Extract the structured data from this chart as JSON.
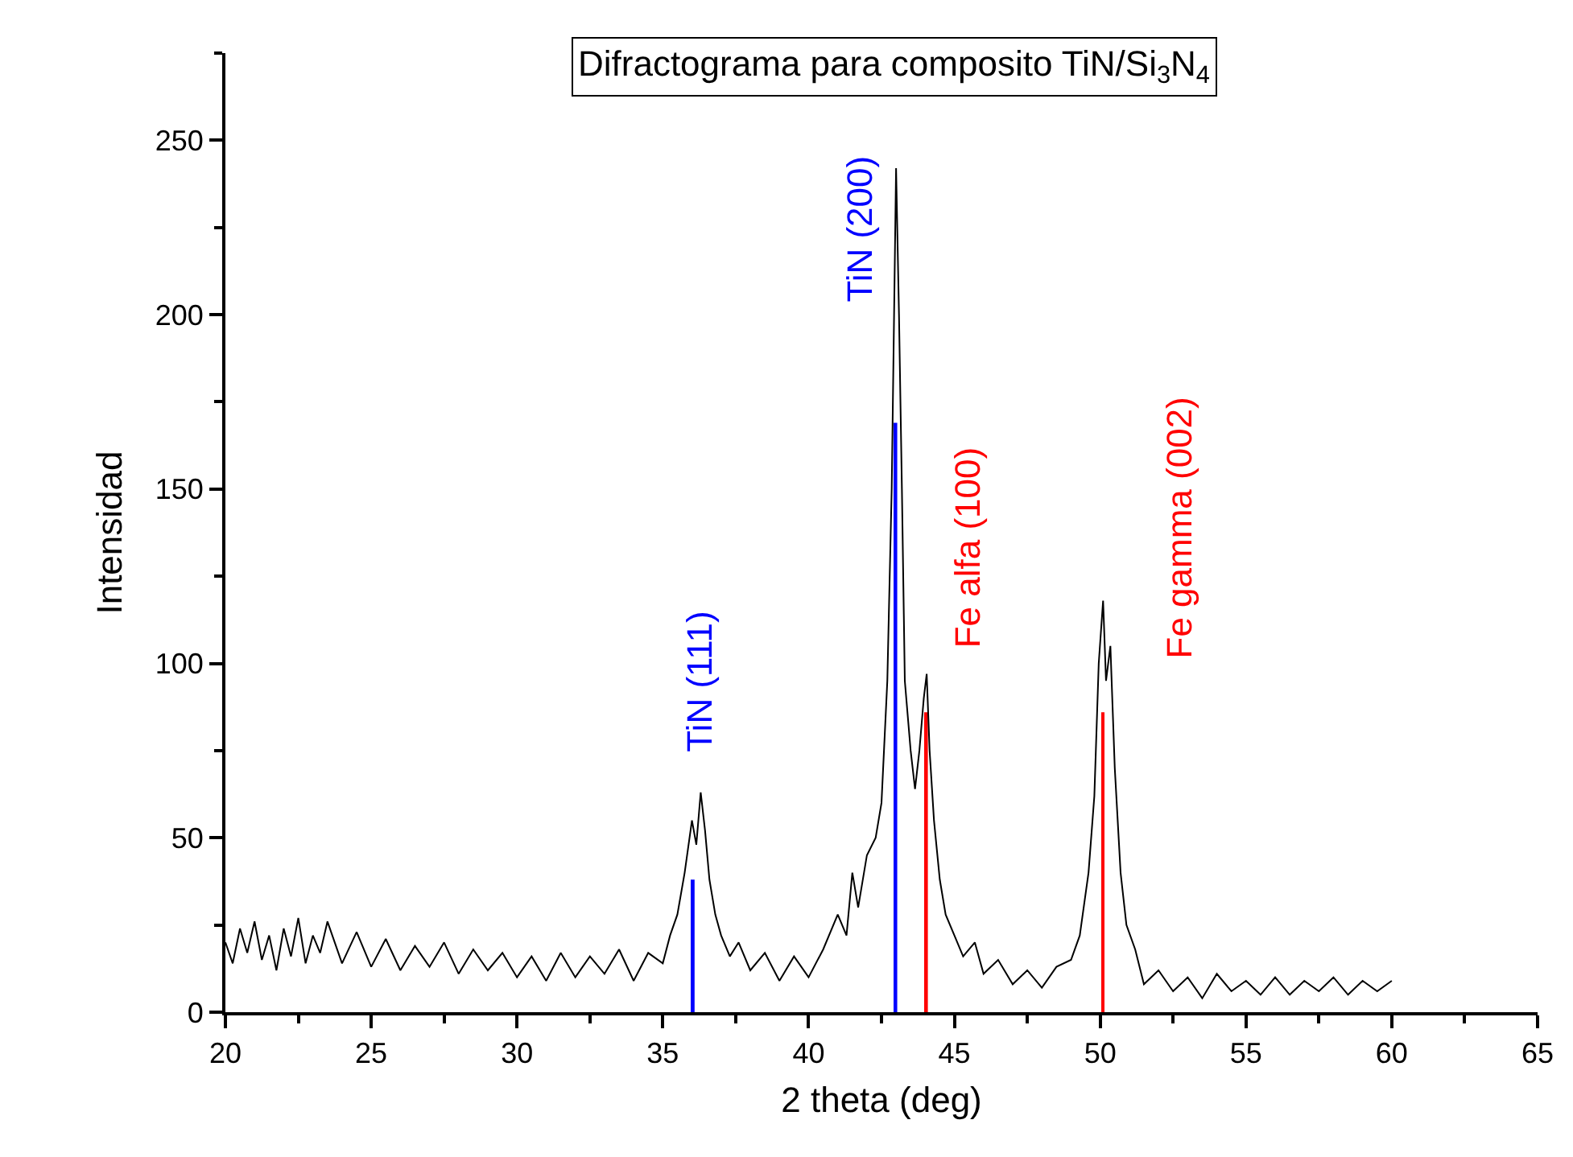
{
  "chart_data": {
    "type": "line",
    "title": "Difractograma para composito TiN/Si$_{3}$N$_{4}$",
    "xlabel": "2 theta (deg)",
    "ylabel": "Intensidad",
    "xlim": [
      20,
      65
    ],
    "ylim": [
      0,
      275
    ],
    "xticks": [
      20,
      25,
      30,
      35,
      40,
      45,
      50,
      55,
      60,
      65
    ],
    "yticks": [
      0,
      50,
      100,
      150,
      200,
      250
    ],
    "marker": "none",
    "line_style": "solid",
    "series": [
      {
        "color": "#000000",
        "x": [
          20,
          20.25,
          20.5,
          20.75,
          21,
          21.25,
          21.5,
          21.75,
          22,
          22.25,
          22.5,
          22.75,
          23,
          23.25,
          23.5,
          24,
          24.5,
          25,
          25.5,
          26,
          26.5,
          27,
          27.5,
          28,
          28.5,
          29,
          29.5,
          30,
          30.5,
          31,
          31.5,
          32,
          32.5,
          33,
          33.5,
          34,
          34.5,
          35,
          35.25,
          35.5,
          35.75,
          36,
          36.15,
          36.3,
          36.45,
          36.6,
          36.8,
          37,
          37.3,
          37.6,
          38,
          38.5,
          39,
          39.5,
          40,
          40.5,
          41,
          41.3,
          41.5,
          41.7,
          42,
          42.3,
          42.5,
          42.7,
          42.85,
          43.0,
          43.1,
          43.2,
          43.3,
          43.5,
          43.65,
          43.8,
          43.95,
          44.05,
          44.15,
          44.3,
          44.5,
          44.7,
          45,
          45.3,
          45.7,
          46,
          46.5,
          47,
          47.5,
          48,
          48.5,
          49,
          49.3,
          49.6,
          49.8,
          49.95,
          50.1,
          50.2,
          50.35,
          50.5,
          50.7,
          50.9,
          51.2,
          51.5,
          52,
          52.5,
          53,
          53.5,
          54,
          54.5,
          55,
          55.5,
          56,
          56.5,
          57,
          57.5,
          58,
          58.5,
          59,
          59.5,
          60
        ],
        "values": [
          20,
          14,
          24,
          17,
          26,
          15,
          22,
          12,
          24,
          16,
          27,
          14,
          22,
          17,
          26,
          14,
          23,
          13,
          21,
          12,
          19,
          13,
          20,
          11,
          18,
          12,
          17,
          10,
          16,
          9,
          17,
          10,
          16,
          11,
          18,
          9,
          17,
          14,
          22,
          28,
          40,
          55,
          48,
          63,
          52,
          38,
          28,
          22,
          16,
          20,
          12,
          17,
          9,
          16,
          10,
          18,
          28,
          22,
          40,
          30,
          45,
          50,
          60,
          95,
          150,
          242,
          200,
          150,
          95,
          75,
          64,
          75,
          90,
          97,
          75,
          55,
          38,
          28,
          22,
          16,
          20,
          11,
          15,
          8,
          12,
          7,
          13,
          15,
          22,
          40,
          62,
          100,
          118,
          95,
          105,
          70,
          40,
          25,
          18,
          8,
          12,
          6,
          10,
          4,
          11,
          6,
          9,
          5,
          10,
          5,
          9,
          6,
          10,
          5,
          9,
          6,
          9
        ]
      },
      {
        "type": "bar",
        "x": [
          36.05,
          43.0,
          44.05,
          50.1
        ],
        "values": [
          38,
          169,
          86,
          86
        ],
        "colors": [
          "#0000ff",
          "#0000ff",
          "#ff0000",
          "#ff0000"
        ]
      }
    ],
    "annotations": [
      "TiN (111)",
      "TiN (200)",
      "Fe alfa (100)",
      "Fe gamma (002)"
    ]
  }
}
